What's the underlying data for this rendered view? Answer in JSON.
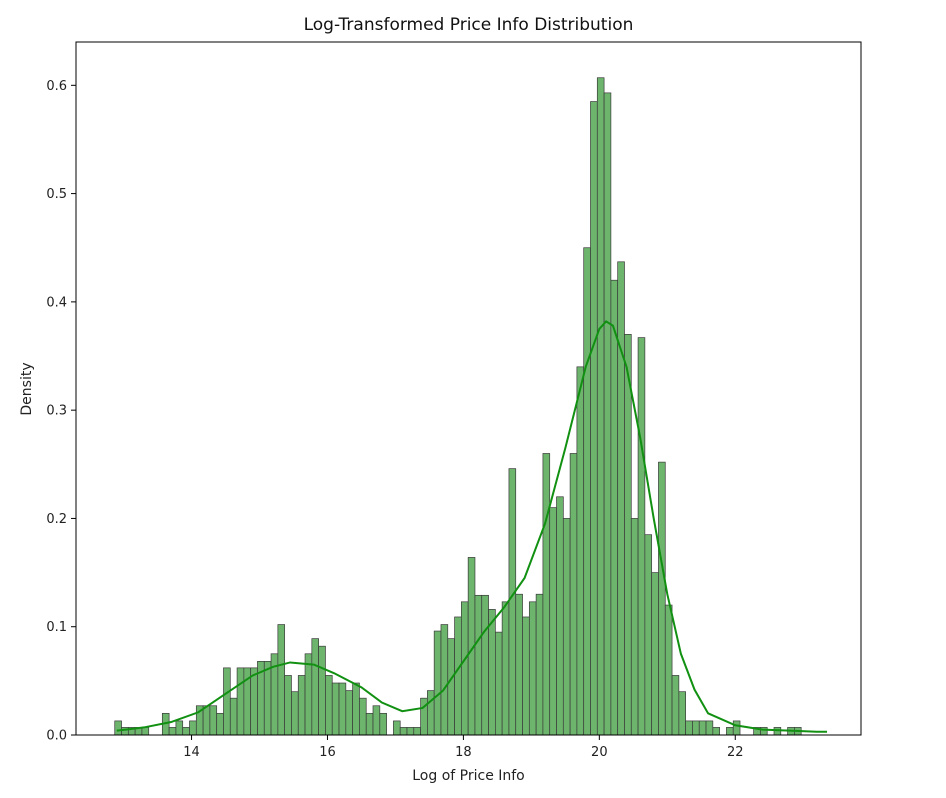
{
  "chart_data": {
    "type": "bar",
    "title": "Log-Transformed Price Info Distribution",
    "xlabel": "Log of Price Info",
    "ylabel": "Density",
    "xlim": [
      12.3,
      23.85
    ],
    "ylim": [
      0,
      0.64
    ],
    "x_ticks": [
      14,
      16,
      18,
      20,
      22
    ],
    "y_ticks": [
      0.0,
      0.1,
      0.2,
      0.3,
      0.4,
      0.5,
      0.6
    ],
    "grid": false,
    "legend": "none",
    "bar_color": "#6db56d",
    "bar_edge_color": "#3a3a3a",
    "kde_color": "#119011",
    "bin_start": 12.87,
    "bin_width": 0.1,
    "values": [
      0.013,
      0.007,
      0.007,
      0.007,
      0.007,
      0,
      0,
      0.02,
      0.007,
      0.013,
      0.007,
      0.013,
      0.027,
      0.027,
      0.027,
      0.02,
      0.062,
      0.034,
      0.062,
      0.062,
      0.062,
      0.068,
      0.068,
      0.075,
      0.102,
      0.055,
      0.04,
      0.055,
      0.075,
      0.089,
      0.082,
      0.055,
      0.048,
      0.048,
      0.041,
      0.048,
      0.034,
      0.02,
      0.027,
      0.02,
      0,
      0.013,
      0.007,
      0.007,
      0.007,
      0.034,
      0.041,
      0.096,
      0.102,
      0.089,
      0.109,
      0.123,
      0.164,
      0.129,
      0.129,
      0.116,
      0.095,
      0.123,
      0.246,
      0.13,
      0.109,
      0.123,
      0.13,
      0.26,
      0.21,
      0.22,
      0.2,
      0.26,
      0.34,
      0.45,
      0.585,
      0.607,
      0.593,
      0.42,
      0.437,
      0.37,
      0.2,
      0.367,
      0.185,
      0.15,
      0.252,
      0.12,
      0.055,
      0.04,
      0.013,
      0.013,
      0.013,
      0.013,
      0.007,
      0,
      0.007,
      0.013,
      0,
      0,
      0.007,
      0.007,
      0,
      0.007,
      0,
      0.007,
      0.007
    ],
    "kde": {
      "x": [
        12.9,
        13.3,
        13.7,
        14.1,
        14.5,
        14.9,
        15.2,
        15.45,
        15.8,
        16.1,
        16.5,
        16.8,
        17.1,
        17.4,
        17.7,
        18.0,
        18.3,
        18.6,
        18.9,
        19.2,
        19.5,
        19.8,
        20.0,
        20.1,
        20.2,
        20.4,
        20.6,
        20.8,
        21.0,
        21.2,
        21.4,
        21.6,
        22.0,
        22.4,
        22.8,
        23.2,
        23.35
      ],
      "y": [
        0.004,
        0.007,
        0.012,
        0.021,
        0.038,
        0.055,
        0.063,
        0.067,
        0.065,
        0.057,
        0.044,
        0.03,
        0.022,
        0.025,
        0.041,
        0.068,
        0.095,
        0.118,
        0.145,
        0.195,
        0.265,
        0.34,
        0.375,
        0.382,
        0.378,
        0.34,
        0.275,
        0.2,
        0.13,
        0.075,
        0.042,
        0.02,
        0.009,
        0.005,
        0.004,
        0.003,
        0.003
      ]
    }
  }
}
